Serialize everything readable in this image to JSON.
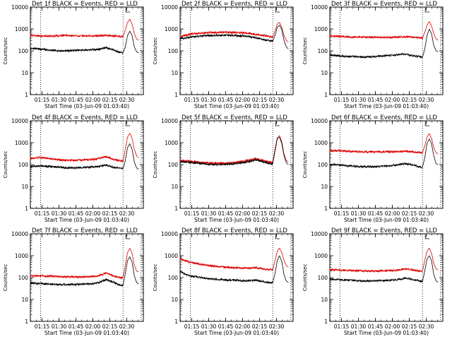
{
  "chart_data": [
    {
      "type": "line",
      "title": "Det 1f BLACK = Events, RED = LLD",
      "ylabel": "Counts/sec",
      "xlabel": "Start Time (03-Jun-09 01:03:40)",
      "x_ticks": [
        "01:15",
        "01:30",
        "01:45",
        "02:00",
        "02:15",
        "02:30"
      ],
      "y_ticks": [
        "1",
        "10",
        "100",
        "1000",
        "10000"
      ],
      "yscale": "log",
      "ylim": [
        1,
        10000
      ],
      "xlim_min": [
        1,
        101
      ],
      "vlines_min": [
        10,
        83,
        99
      ],
      "series": [
        {
          "color": "#000000",
          "x_min": [
            0,
            5,
            10,
            20,
            30,
            40,
            50,
            60,
            68,
            75,
            80,
            83,
            85,
            87,
            89,
            91,
            93,
            95,
            97
          ],
          "values": [
            120,
            130,
            120,
            105,
            100,
            105,
            110,
            115,
            140,
            110,
            85,
            80,
            150,
            500,
            800,
            500,
            150,
            90,
            80
          ]
        },
        {
          "color": "#dd0000",
          "x_min": [
            0,
            10,
            20,
            30,
            40,
            50,
            60,
            68,
            75,
            80,
            83,
            85,
            87,
            89,
            91,
            93,
            95,
            97
          ],
          "values": [
            520,
            480,
            470,
            500,
            490,
            480,
            490,
            510,
            480,
            460,
            450,
            900,
            2000,
            2800,
            1700,
            600,
            350,
            300
          ]
        }
      ]
    },
    {
      "type": "line",
      "title": "Det 2f BLACK = Events, RED = LLD",
      "ylabel": "Counts/sec",
      "xlabel": "Start Time (03-Jun-09 01:03:40)",
      "x_ticks": [
        "01:15",
        "01:30",
        "01:45",
        "02:00",
        "02:15",
        "02:30"
      ],
      "y_ticks": [
        "1",
        "10",
        "100",
        "1000",
        "10000"
      ],
      "yscale": "log",
      "ylim": [
        1,
        10000
      ],
      "xlim_min": [
        1,
        101
      ],
      "vlines_min": [
        10,
        83,
        99
      ],
      "series": [
        {
          "color": "#000000",
          "x_min": [
            0,
            5,
            10,
            20,
            30,
            40,
            50,
            60,
            70,
            78,
            83,
            85,
            87,
            89,
            91,
            93,
            95,
            97
          ],
          "values": [
            350,
            380,
            420,
            480,
            500,
            520,
            500,
            470,
            380,
            300,
            280,
            500,
            1200,
            1500,
            900,
            300,
            150,
            120
          ]
        },
        {
          "color": "#dd0000",
          "x_min": [
            0,
            5,
            10,
            20,
            30,
            40,
            50,
            60,
            70,
            78,
            83,
            85,
            87,
            89,
            91,
            93,
            95,
            97
          ],
          "values": [
            420,
            500,
            580,
            650,
            680,
            700,
            690,
            650,
            550,
            480,
            420,
            800,
            1700,
            2000,
            1200,
            500,
            300,
            250
          ]
        }
      ]
    },
    {
      "type": "line",
      "title": "Det 3f BLACK = Events, RED = LLD",
      "ylabel": "Counts/sec",
      "xlabel": "Start Time (03-Jun-09 01:03:40)",
      "x_ticks": [
        "01:15",
        "01:30",
        "01:45",
        "02:00",
        "02:15",
        "02:30"
      ],
      "y_ticks": [
        "1",
        "10",
        "100",
        "1000",
        "10000"
      ],
      "yscale": "log",
      "ylim": [
        1,
        10000
      ],
      "xlim_min": [
        1,
        101
      ],
      "vlines_min": [
        10,
        83,
        99
      ],
      "series": [
        {
          "color": "#000000",
          "x_min": [
            0,
            5,
            10,
            20,
            30,
            40,
            50,
            60,
            68,
            75,
            80,
            83,
            85,
            87,
            89,
            91,
            93,
            95,
            97
          ],
          "values": [
            65,
            62,
            58,
            55,
            52,
            55,
            60,
            65,
            70,
            60,
            55,
            50,
            120,
            500,
            1000,
            600,
            180,
            100,
            90
          ]
        },
        {
          "color": "#dd0000",
          "x_min": [
            0,
            10,
            20,
            30,
            40,
            50,
            60,
            70,
            80,
            83,
            85,
            87,
            89,
            91,
            93,
            95,
            97
          ],
          "values": [
            480,
            460,
            430,
            420,
            420,
            410,
            420,
            440,
            400,
            380,
            700,
            1500,
            2200,
            1400,
            600,
            350,
            300
          ]
        }
      ]
    },
    {
      "type": "line",
      "title": "Det 4f BLACK = Events, RED = LLD",
      "ylabel": "Counts/sec",
      "xlabel": "Start Time (03-Jun-09 01:03:40)",
      "x_ticks": [
        "01:15",
        "01:30",
        "01:45",
        "02:00",
        "02:15",
        "02:30"
      ],
      "y_ticks": [
        "1",
        "10",
        "100",
        "1000",
        "10000"
      ],
      "yscale": "log",
      "ylim": [
        1,
        10000
      ],
      "xlim_min": [
        1,
        101
      ],
      "vlines_min": [
        10,
        83,
        99
      ],
      "series": [
        {
          "color": "#000000",
          "x_min": [
            0,
            5,
            10,
            20,
            30,
            40,
            50,
            60,
            68,
            75,
            80,
            83,
            85,
            87,
            89,
            91,
            93,
            95,
            97
          ],
          "values": [
            80,
            85,
            88,
            80,
            72,
            70,
            75,
            80,
            95,
            75,
            68,
            65,
            150,
            600,
            900,
            500,
            130,
            70,
            60
          ]
        },
        {
          "color": "#dd0000",
          "x_min": [
            0,
            5,
            10,
            20,
            30,
            40,
            50,
            60,
            68,
            75,
            80,
            83,
            85,
            87,
            89,
            91,
            93,
            95,
            97
          ],
          "values": [
            190,
            200,
            210,
            180,
            160,
            155,
            165,
            180,
            230,
            170,
            150,
            140,
            500,
            1800,
            2700,
            1600,
            500,
            250,
            200
          ]
        }
      ]
    },
    {
      "type": "line",
      "title": "Det 5f BLACK = Events, RED = LLD",
      "ylabel": "Counts/sec",
      "xlabel": "Start Time (03-Jun-09 01:03:40)",
      "x_ticks": [
        "01:15",
        "01:30",
        "01:45",
        "02:00",
        "02:15",
        "02:30"
      ],
      "y_ticks": [
        "1",
        "10",
        "100",
        "1000",
        "10000"
      ],
      "yscale": "log",
      "ylim": [
        1,
        10000
      ],
      "xlim_min": [
        1,
        101
      ],
      "vlines_min": [
        10,
        83,
        99
      ],
      "series": [
        {
          "color": "#000000",
          "x_min": [
            0,
            5,
            10,
            20,
            30,
            40,
            50,
            60,
            68,
            75,
            80,
            83,
            85,
            87,
            89,
            91,
            93,
            95,
            97
          ],
          "values": [
            140,
            130,
            125,
            110,
            100,
            100,
            110,
            130,
            165,
            130,
            115,
            110,
            400,
            1500,
            1800,
            900,
            250,
            120,
            100
          ]
        },
        {
          "color": "#dd0000",
          "x_min": [
            0,
            5,
            10,
            20,
            30,
            40,
            50,
            60,
            68,
            75,
            80,
            83,
            85,
            87,
            89,
            91,
            93,
            95,
            97
          ],
          "values": [
            160,
            150,
            140,
            125,
            115,
            115,
            125,
            150,
            185,
            150,
            130,
            125,
            500,
            1700,
            2100,
            1100,
            300,
            150,
            130
          ]
        }
      ]
    },
    {
      "type": "line",
      "title": "Det 6f BLACK = Events, RED = LLD",
      "ylabel": "Counts/sec",
      "xlabel": "Start Time (03-Jun-09 01:03:40)",
      "x_ticks": [
        "01:15",
        "01:30",
        "01:45",
        "02:00",
        "02:15",
        "02:30"
      ],
      "y_ticks": [
        "1",
        "10",
        "100",
        "1000",
        "10000"
      ],
      "yscale": "log",
      "ylim": [
        1,
        10000
      ],
      "xlim_min": [
        1,
        101
      ],
      "vlines_min": [
        10,
        83,
        99
      ],
      "series": [
        {
          "color": "#000000",
          "x_min": [
            0,
            5,
            10,
            20,
            30,
            40,
            50,
            60,
            68,
            75,
            80,
            83,
            85,
            87,
            89,
            91,
            93,
            95,
            97
          ],
          "values": [
            95,
            100,
            95,
            85,
            80,
            80,
            85,
            95,
            110,
            95,
            80,
            75,
            200,
            900,
            1500,
            900,
            250,
            110,
            100
          ]
        },
        {
          "color": "#dd0000",
          "x_min": [
            0,
            10,
            20,
            30,
            40,
            50,
            60,
            70,
            80,
            83,
            85,
            87,
            89,
            91,
            93,
            95,
            97
          ],
          "values": [
            430,
            420,
            400,
            380,
            380,
            380,
            390,
            400,
            360,
            350,
            700,
            1800,
            2600,
            1600,
            600,
            350,
            300
          ]
        }
      ]
    },
    {
      "type": "line",
      "title": "Det 7f BLACK = Events, RED = LLD",
      "ylabel": "Counts/sec",
      "xlabel": "Start Time (03-Jun-09 01:03:40)",
      "x_ticks": [
        "01:15",
        "01:30",
        "01:45",
        "02:00",
        "02:15",
        "02:30"
      ],
      "y_ticks": [
        "1",
        "10",
        "100",
        "1000",
        "10000"
      ],
      "yscale": "log",
      "ylim": [
        1,
        10000
      ],
      "xlim_min": [
        1,
        101
      ],
      "vlines_min": [
        10,
        83,
        99
      ],
      "series": [
        {
          "color": "#000000",
          "x_min": [
            0,
            5,
            10,
            20,
            30,
            40,
            50,
            60,
            68,
            75,
            80,
            83,
            85,
            87,
            89,
            91,
            93,
            95,
            97
          ],
          "values": [
            60,
            55,
            52,
            50,
            48,
            48,
            50,
            55,
            80,
            60,
            45,
            42,
            150,
            600,
            900,
            500,
            120,
            60,
            50
          ]
        },
        {
          "color": "#dd0000",
          "x_min": [
            0,
            5,
            10,
            20,
            30,
            40,
            50,
            60,
            68,
            75,
            80,
            83,
            85,
            87,
            89,
            91,
            93,
            95,
            97
          ],
          "values": [
            130,
            120,
            120,
            115,
            110,
            105,
            110,
            115,
            160,
            120,
            100,
            95,
            350,
            1400,
            2200,
            1300,
            350,
            200,
            180
          ]
        }
      ]
    },
    {
      "type": "line",
      "title": "Det 8f BLACK = Events, RED = LLD",
      "ylabel": "Counts/sec",
      "xlabel": "Start Time (03-Jun-09 01:03:40)",
      "x_ticks": [
        "01:15",
        "01:30",
        "01:45",
        "02:00",
        "02:15",
        "02:30"
      ],
      "y_ticks": [
        "1",
        "10",
        "100",
        "1000",
        "10000"
      ],
      "yscale": "log",
      "ylim": [
        1,
        10000
      ],
      "xlim_min": [
        1,
        101
      ],
      "vlines_min": [
        10,
        83,
        99
      ],
      "series": [
        {
          "color": "#000000",
          "x_min": [
            0,
            5,
            10,
            20,
            30,
            40,
            50,
            60,
            68,
            75,
            80,
            83,
            85,
            87,
            89,
            91,
            93,
            95,
            97
          ],
          "values": [
            200,
            150,
            120,
            100,
            85,
            80,
            75,
            70,
            75,
            65,
            60,
            58,
            150,
            600,
            1000,
            550,
            130,
            70,
            60
          ]
        },
        {
          "color": "#dd0000",
          "x_min": [
            0,
            5,
            10,
            20,
            30,
            40,
            50,
            60,
            68,
            75,
            80,
            83,
            85,
            87,
            89,
            91,
            93,
            95,
            97
          ],
          "values": [
            800,
            600,
            500,
            400,
            340,
            300,
            280,
            270,
            280,
            250,
            230,
            220,
            600,
            1600,
            2200,
            1400,
            600,
            350,
            300
          ]
        }
      ]
    },
    {
      "type": "line",
      "title": "Det 9f BLACK = Events, RED = LLD",
      "ylabel": "Counts/sec",
      "xlabel": "Start Time (03-Jun-09 01:03:40)",
      "x_ticks": [
        "01:15",
        "01:30",
        "01:45",
        "02:00",
        "02:15",
        "02:30"
      ],
      "y_ticks": [
        "1",
        "10",
        "100",
        "1000",
        "10000"
      ],
      "yscale": "log",
      "ylim": [
        1,
        10000
      ],
      "xlim_min": [
        1,
        101
      ],
      "vlines_min": [
        10,
        83,
        99
      ],
      "series": [
        {
          "color": "#000000",
          "x_min": [
            0,
            5,
            10,
            20,
            30,
            40,
            50,
            60,
            68,
            75,
            80,
            83,
            85,
            87,
            89,
            91,
            93,
            95,
            97
          ],
          "values": [
            85,
            82,
            80,
            75,
            70,
            70,
            72,
            78,
            95,
            80,
            70,
            65,
            200,
            700,
            1000,
            600,
            140,
            70,
            60
          ]
        },
        {
          "color": "#dd0000",
          "x_min": [
            0,
            10,
            20,
            30,
            40,
            50,
            60,
            68,
            75,
            80,
            83,
            85,
            87,
            89,
            91,
            93,
            95,
            97
          ],
          "values": [
            230,
            220,
            210,
            200,
            200,
            205,
            215,
            250,
            220,
            200,
            190,
            600,
            1600,
            2200,
            1300,
            450,
            250,
            220
          ]
        }
      ]
    }
  ]
}
